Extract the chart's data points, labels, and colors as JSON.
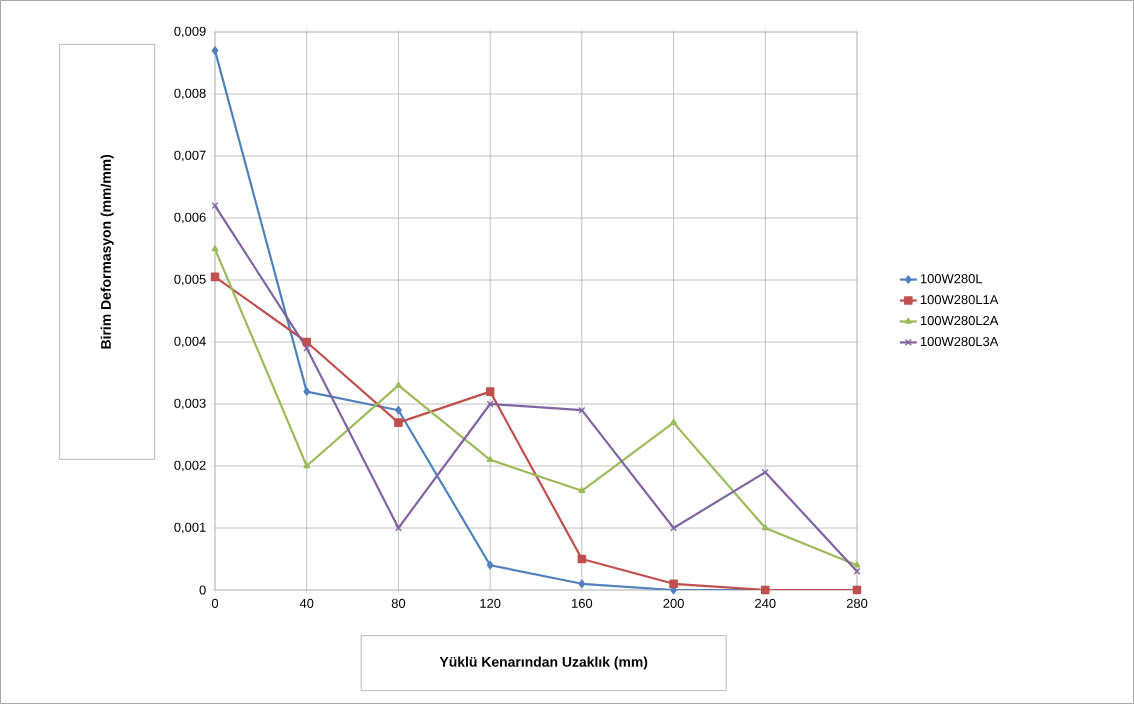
{
  "chart_data": {
    "type": "line",
    "xlabel": "Yüklü Kenarından  Uzaklık (mm)",
    "ylabel": "Birim Deformasyon (mm/mm)",
    "x": [
      0,
      40,
      80,
      120,
      160,
      200,
      240,
      280
    ],
    "xlim": [
      0,
      280
    ],
    "xticks": [
      0,
      40,
      80,
      120,
      160,
      200,
      240,
      280
    ],
    "ylim": [
      0,
      0.009
    ],
    "yticks": [
      {
        "value": 0,
        "label": "0"
      },
      {
        "value": 0.001,
        "label": "0,001"
      },
      {
        "value": 0.002,
        "label": "0,002"
      },
      {
        "value": 0.003,
        "label": "0,003"
      },
      {
        "value": 0.004,
        "label": "0,004"
      },
      {
        "value": 0.005,
        "label": "0,005"
      },
      {
        "value": 0.006,
        "label": "0,006"
      },
      {
        "value": 0.007,
        "label": "0,007"
      },
      {
        "value": 0.008,
        "label": "0,008"
      },
      {
        "value": 0.009,
        "label": "0,009"
      }
    ],
    "grid": true,
    "legend": "right",
    "series": [
      {
        "name": "100W280L",
        "color": "#4f81bd",
        "marker": "diamond",
        "values": [
          0.0087,
          0.0032,
          0.0029,
          0.0004,
          0.0001,
          0,
          0,
          0
        ]
      },
      {
        "name": "100W280L1A",
        "color": "#c0504d",
        "marker": "square",
        "values": [
          0.00505,
          0.004,
          0.0027,
          0.0032,
          0.0005,
          0.0001,
          0,
          0
        ]
      },
      {
        "name": "100W280L2A",
        "color": "#9bbb59",
        "marker": "triangle",
        "values": [
          0.0055,
          0.002,
          0.0033,
          0.0021,
          0.0016,
          0.0027,
          0.001,
          0.0004
        ]
      },
      {
        "name": "100W280L3A",
        "color": "#8064a2",
        "marker": "cross",
        "values": [
          0.0062,
          0.0039,
          0.001,
          0.003,
          0.0029,
          0.001,
          0.0019,
          0.0003
        ]
      }
    ]
  }
}
